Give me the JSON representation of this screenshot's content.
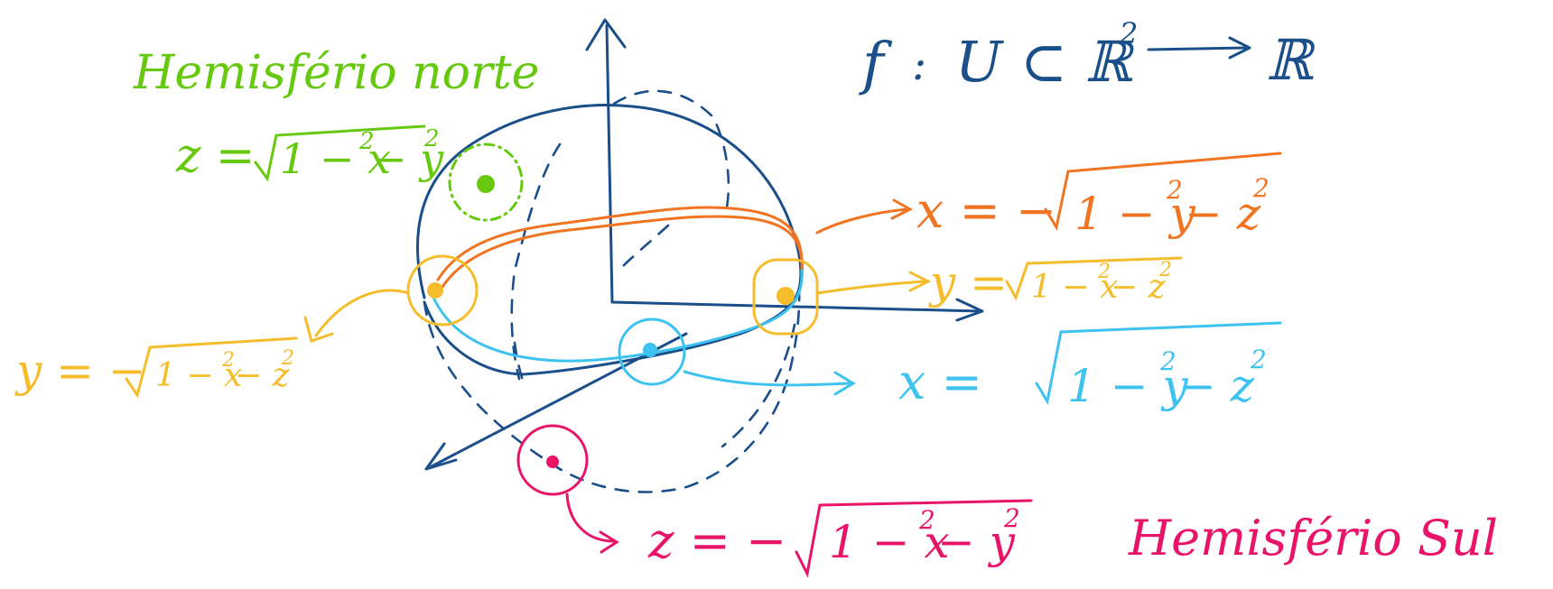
{
  "colors": {
    "blue": "#1a4f8a",
    "green": "#66c90f",
    "orange": "#f07421",
    "yellow": "#f5bd2b",
    "cyan": "#3ec2ef",
    "magenta": "#e8146a"
  },
  "function_def": {
    "f": "f",
    "colon": ":",
    "domain": "U ⊂ ℝ",
    "domain_exp": "2",
    "codomain": "ℝ"
  },
  "north": {
    "title": "Hemisfério norte",
    "eq_lhs": "z =",
    "eq_rad": "1 − x",
    "eq_rad2": "− y",
    "exp": "2"
  },
  "south": {
    "title": "Hemisfério Sul",
    "eq_lhs": "z = −",
    "eq_rad": "1 − x",
    "eq_rad2": "− y",
    "exp": "2"
  },
  "orange_eq": {
    "lhs": "x = −",
    "rad": "1 − y",
    "rad2": "− z",
    "exp": "2"
  },
  "yellow_right_eq": {
    "lhs": "y =",
    "rad": "1 − x",
    "rad2": "− z",
    "exp": "2"
  },
  "yellow_left_eq": {
    "lhs": "y = −",
    "rad": "1 − x",
    "rad2": "− z",
    "exp": "2"
  },
  "cyan_eq": {
    "lhs": "x =",
    "rad": "1 − y",
    "rad2": "− z",
    "exp": "2"
  }
}
